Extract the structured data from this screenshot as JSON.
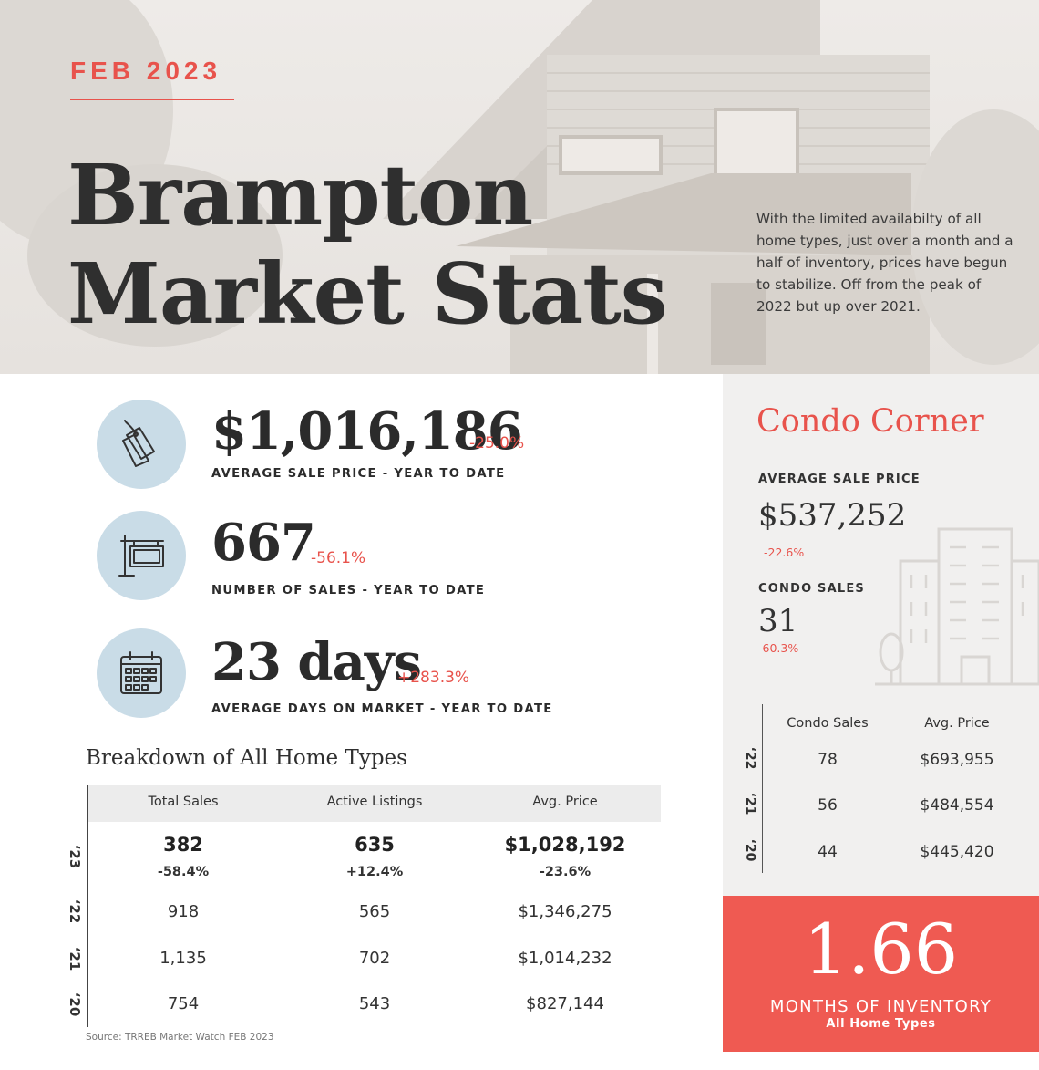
{
  "hero": {
    "date": "FEB 2023",
    "title_line1": "Brampton",
    "title_line2": "Market Stats",
    "description": "With the limited availabilty of all home types, just over a month and a half of inventory, prices have begun to stabilize.  Off from the peak of 2022 but up over 2021."
  },
  "stats": [
    {
      "value": "$1,016,186",
      "change": "-25.0%",
      "label": "AVERAGE SALE PRICE - YEAR TO DATE",
      "icon": "price-tag-icon"
    },
    {
      "value": "667",
      "change": "-56.1%",
      "label": "NUMBER OF SALES - YEAR TO DATE",
      "icon": "for-sale-sign-icon"
    },
    {
      "value": "23 days",
      "change": "+283.3%",
      "label": "AVERAGE DAYS ON MARKET - YEAR TO DATE",
      "icon": "calendar-icon"
    }
  ],
  "breakdown": {
    "title": "Breakdown of All Home Types",
    "headers": [
      "Total Sales",
      "Active Listings",
      "Avg. Price"
    ],
    "rows": [
      {
        "year": "‘23",
        "cells": [
          "382",
          "635",
          "$1,028,192"
        ],
        "changes": [
          "-58.4%",
          "+12.4%",
          "-23.6%"
        ]
      },
      {
        "year": "‘22",
        "cells": [
          "918",
          "565",
          "$1,346,275"
        ]
      },
      {
        "year": "‘21",
        "cells": [
          "1,135",
          "702",
          "$1,014,232"
        ]
      },
      {
        "year": "‘20",
        "cells": [
          "754",
          "543",
          "$827,144"
        ]
      }
    ],
    "source": "Source: TRREB Market Watch FEB 2023"
  },
  "condo": {
    "title": "Condo Corner",
    "avg_label": "AVERAGE SALE PRICE",
    "avg_value": "$537,252",
    "avg_change": "-22.6%",
    "sales_label": "CONDO SALES",
    "sales_value": "31",
    "sales_change": "-60.3%",
    "headers": [
      "Condo Sales",
      "Avg. Price"
    ],
    "rows": [
      {
        "year": "‘22",
        "cells": [
          "78",
          "$693,955"
        ]
      },
      {
        "year": "‘21",
        "cells": [
          "56",
          "$484,554"
        ]
      },
      {
        "year": "‘20",
        "cells": [
          "44",
          "$445,420"
        ]
      }
    ],
    "icon": "buildings-icon"
  },
  "inventory": {
    "value": "1.66",
    "label": "MONTHS OF INVENTORY",
    "sublabel": "All Home Types"
  },
  "colors": {
    "accent": "#e8534c",
    "icon_circle": "#c9dce7",
    "inventory_bg": "#ef5a52"
  }
}
